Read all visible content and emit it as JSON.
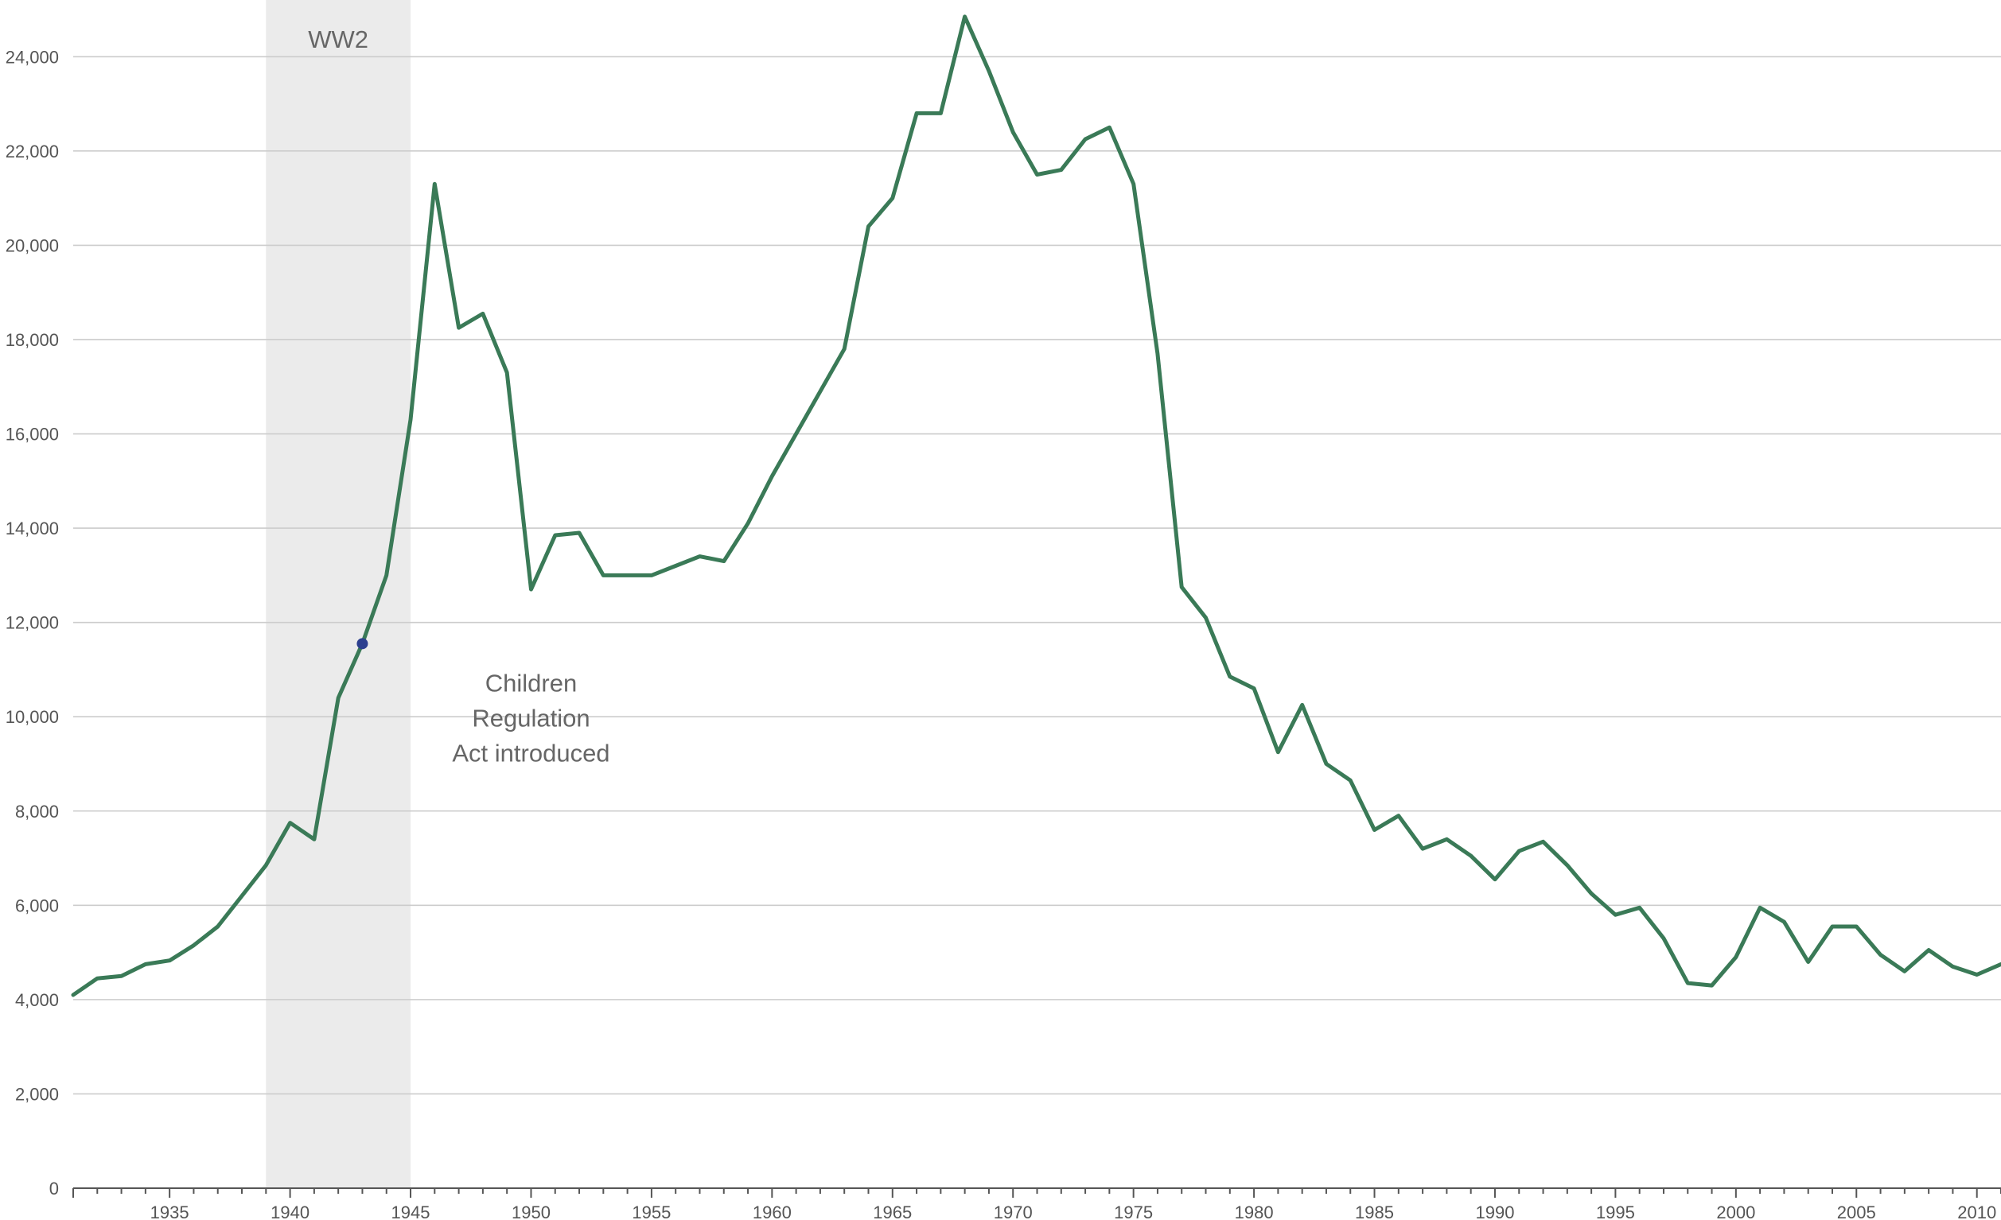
{
  "chart_data": {
    "type": "line",
    "title": "",
    "xlabel": "",
    "ylabel": "",
    "xlim": [
      1931,
      2011
    ],
    "ylim": [
      0,
      25000
    ],
    "grid": true,
    "y_ticks": [
      0,
      2000,
      4000,
      6000,
      8000,
      10000,
      12000,
      14000,
      16000,
      18000,
      20000,
      22000,
      24000
    ],
    "y_tick_labels": [
      "0",
      "2,000",
      "4,000",
      "6,000",
      "8,000",
      "10,000",
      "12,000",
      "14,000",
      "16,000",
      "18,000",
      "20,000",
      "22,000",
      "24,000"
    ],
    "x_ticks": [
      1935,
      1940,
      1945,
      1950,
      1955,
      1960,
      1965,
      1970,
      1975,
      1980,
      1985,
      1990,
      1995,
      2000,
      2005,
      2010
    ],
    "x_tick_labels": [
      "1935",
      "1940",
      "1945",
      "1950",
      "1955",
      "1960",
      "1965",
      "1970",
      "1975",
      "1980",
      "1985",
      "1990",
      "1995",
      "2000",
      "2005",
      "2010"
    ],
    "shaded_region": {
      "label": "WW2",
      "x_start": 1939,
      "x_end": 1945,
      "color": "#ebebeb"
    },
    "annotation": {
      "lines": [
        "Children",
        "Regulation",
        "Act introduced"
      ],
      "x": 1950,
      "y": 10200
    },
    "highlight_point": {
      "x": 1943,
      "y": 11550,
      "color": "#2c3f8f"
    },
    "line_color": "#3a7a57",
    "series": [
      {
        "x": [
          1931,
          1932,
          1933,
          1934,
          1935,
          1936,
          1937,
          1938,
          1939,
          1940,
          1941,
          1942,
          1943,
          1944,
          1945,
          1946,
          1947,
          1948,
          1949,
          1950,
          1951,
          1952,
          1953,
          1954,
          1955,
          1956,
          1957,
          1958,
          1959,
          1960,
          1961,
          1962,
          1963,
          1964,
          1965,
          1966,
          1967,
          1968,
          1969,
          1970,
          1971,
          1972,
          1973,
          1974,
          1975,
          1976,
          1977,
          1978,
          1979,
          1980,
          1981,
          1982,
          1983,
          1984,
          1985,
          1986,
          1987,
          1988,
          1989,
          1990,
          1991,
          1992,
          1993,
          1994,
          1995,
          1996,
          1997,
          1998,
          1999,
          2000,
          2001,
          2002,
          2003,
          2004,
          2005,
          2006,
          2007,
          2008,
          2009,
          2010,
          2011
        ],
        "values": [
          4100,
          4450,
          4500,
          4750,
          4830,
          5150,
          5550,
          6200,
          6850,
          7750,
          7400,
          10400,
          11550,
          13000,
          16300,
          21300,
          18250,
          18550,
          17300,
          12700,
          13850,
          13900,
          13000,
          13000,
          13000,
          13200,
          13400,
          13300,
          14100,
          15100,
          16000,
          16900,
          17800,
          20400,
          21000,
          22800,
          22800,
          24850,
          23700,
          22400,
          21500,
          21600,
          22250,
          22500,
          21300,
          17700,
          12750,
          12100,
          10850,
          10600,
          9250,
          10250,
          9000,
          8650,
          7600,
          7900,
          7200,
          7400,
          7050,
          6550,
          7150,
          7350,
          6850,
          6250,
          5800,
          5950,
          5300,
          4350,
          4300,
          4900,
          5950,
          5650,
          4800,
          5550,
          5550,
          4950,
          4600,
          5050,
          4700,
          4530,
          4750
        ]
      }
    ]
  }
}
